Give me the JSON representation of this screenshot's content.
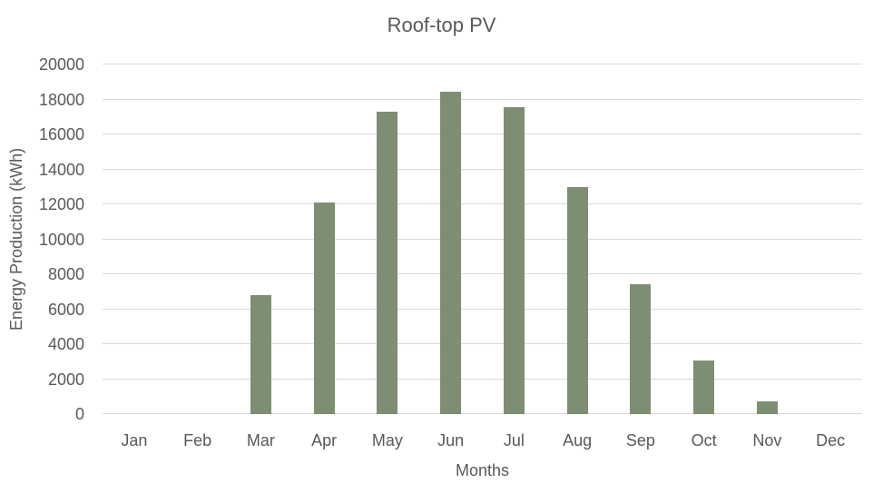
{
  "chart": {
    "title": "Roof-top PV",
    "x_axis_label": "Months",
    "y_axis_label": "Energy Production (kWh)"
  },
  "chart_data": {
    "type": "bar",
    "title": "Roof-top PV",
    "xlabel": "Months",
    "ylabel": "Energy Production (kWh)",
    "categories": [
      "Jan",
      "Feb",
      "Mar",
      "Apr",
      "May",
      "Jun",
      "Jul",
      "Aug",
      "Sep",
      "Oct",
      "Nov",
      "Dec"
    ],
    "values": [
      0,
      0,
      6800,
      12100,
      17300,
      18450,
      17550,
      13000,
      7450,
      3080,
      750,
      0
    ],
    "ylim": [
      0,
      20000
    ],
    "y_tick_step": 2000,
    "y_tick_labels": [
      "0",
      "2000",
      "4000",
      "6000",
      "8000",
      "10000",
      "12000",
      "14000",
      "16000",
      "18000",
      "20000"
    ],
    "grid": true,
    "legend": "none",
    "colors": {
      "bar": "#7D8E72",
      "gridline": "#D9D9D9",
      "text": "#595959",
      "background": "#FFFFFF"
    }
  }
}
